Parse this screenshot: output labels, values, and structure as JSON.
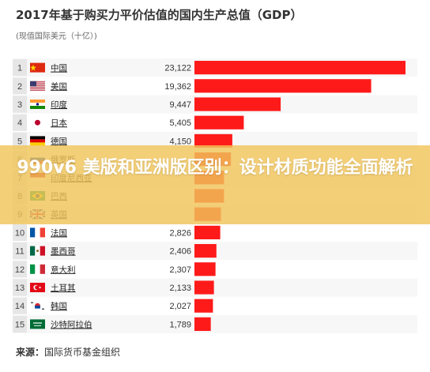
{
  "title": "2017年基于购买力平价估值的国内生产总值（GDP）",
  "subtitle": "(现值国际美元（十亿）)",
  "overlay_title": "990v6 美版和亚洲版区别：设计材质功能全面解析",
  "source_label": "来源：",
  "source_text": "国际货币基金组织",
  "colors": {
    "bar": "#ff1a1a",
    "row_odd": "#f7f7f7",
    "rank_bg": "#e6e6e6"
  },
  "chart_data": {
    "type": "bar",
    "orientation": "horizontal",
    "categories": [
      "中国",
      "美国",
      "印度",
      "日本",
      "德国",
      "俄罗斯",
      "印度尼西亚",
      "巴西",
      "英国",
      "法国",
      "墨西哥",
      "意大利",
      "土耳其",
      "韩国",
      "沙特阿拉伯"
    ],
    "ranks": [
      1,
      2,
      3,
      4,
      5,
      6,
      7,
      8,
      9,
      10,
      11,
      12,
      13,
      14,
      15
    ],
    "values": [
      23122,
      19362,
      9447,
      5405,
      4150,
      4000,
      3240,
      3240,
      2900,
      2826,
      2406,
      2307,
      2133,
      2027,
      1789
    ],
    "value_labels": [
      "23,122",
      "19,362",
      "9,447",
      "5,405",
      "4,150",
      "",
      "",
      "",
      "",
      "2,826",
      "2,406",
      "2,307",
      "2,133",
      "2,027",
      "1,789"
    ],
    "flags": [
      "cn-flag-icon",
      "us-flag-icon",
      "in-flag-icon",
      "jp-flag-icon",
      "de-flag-icon",
      "ru-flag-icon",
      "id-flag-icon",
      "br-flag-icon",
      "gb-flag-icon",
      "fr-flag-icon",
      "mx-flag-icon",
      "it-flag-icon",
      "tr-flag-icon",
      "kr-flag-icon",
      "sa-flag-icon"
    ],
    "xlim": [
      0,
      23122
    ]
  }
}
